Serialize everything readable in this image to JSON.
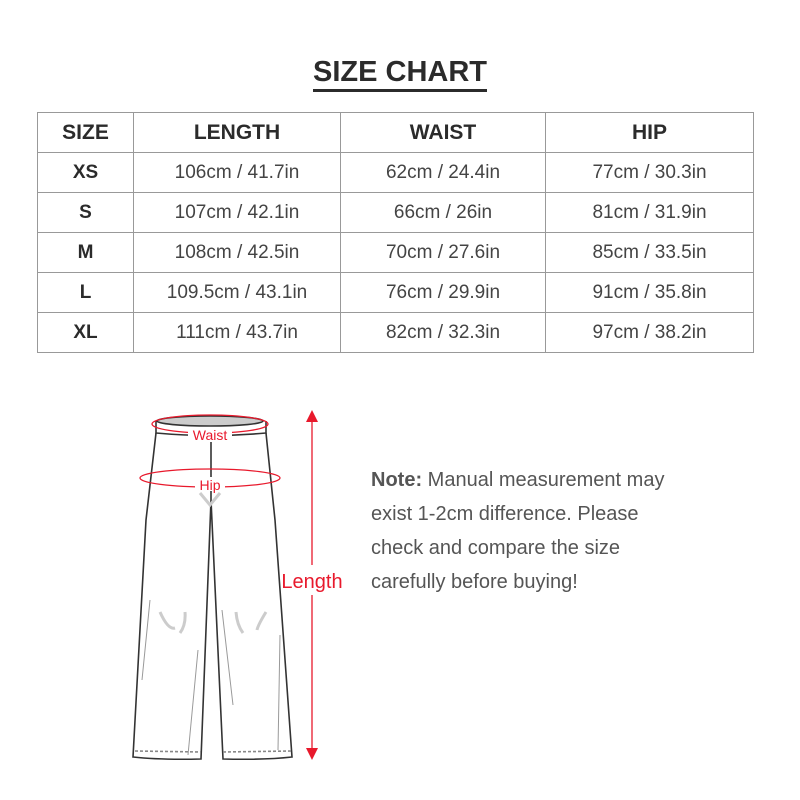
{
  "title": "SIZE CHART",
  "table": {
    "headers": [
      "SIZE",
      "LENGTH",
      "WAIST",
      "HIP"
    ],
    "rows": [
      [
        "XS",
        "106cm / 41.7in",
        "62cm / 24.4in",
        "77cm / 30.3in"
      ],
      [
        "S",
        "107cm / 42.1in",
        "66cm / 26in",
        "81cm / 31.9in"
      ],
      [
        "M",
        "108cm / 42.5in",
        "70cm / 27.6in",
        "85cm / 33.5in"
      ],
      [
        "L",
        "109.5cm / 43.1in",
        "76cm / 29.9in",
        "91cm / 35.8in"
      ],
      [
        "XL",
        "111cm / 43.7in",
        "82cm / 32.3in",
        "97cm / 38.2in"
      ]
    ]
  },
  "diagram": {
    "waist_label": "Waist",
    "hip_label": "Hip",
    "length_label": "Length",
    "accent_color": "#e8192c"
  },
  "note": {
    "label": "Note:",
    "text": "Manual measurement may exist 1-2cm difference. Please check and compare the size carefully before buying!"
  }
}
